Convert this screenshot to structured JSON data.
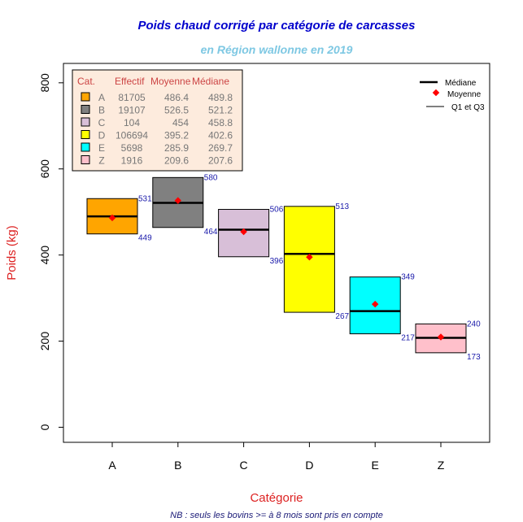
{
  "chart_data": {
    "type": "box",
    "title": "Poids chaud corrigé par catégorie de carcasses",
    "subtitle": "en Région wallonne en 2019",
    "xlabel": "Catégorie",
    "ylabel": "Poids (kg)",
    "note": "NB : seuls les bovins >= à 8 mois sont pris en compte",
    "ylim": [
      -35,
      845
    ],
    "yticks": [
      0,
      200,
      400,
      600,
      800
    ],
    "categories": [
      "A",
      "B",
      "C",
      "D",
      "E",
      "Z"
    ],
    "colors": [
      "#FFA500",
      "#808080",
      "#D8BFD8",
      "#FFFF00",
      "#00FFFF",
      "#FFC0CB"
    ],
    "q1": [
      449,
      464,
      396,
      267,
      217,
      173
    ],
    "q3": [
      531,
      580,
      506,
      513,
      349,
      240
    ],
    "q1_labels": [
      "449",
      "464",
      "396",
      "267",
      "217",
      "173"
    ],
    "q3_labels": [
      "531",
      "580",
      "506",
      "513",
      "349",
      "240"
    ],
    "mean": [
      486.4,
      526.5,
      454,
      395.2,
      285.9,
      209.6
    ],
    "median": [
      489.8,
      521.2,
      458.8,
      402.6,
      269.7,
      207.6
    ],
    "table_legend": {
      "header": [
        "Cat.",
        "Effectif",
        "Moyenne",
        "Médiane"
      ],
      "rows": [
        [
          "A",
          "81705",
          "486.4",
          "489.8"
        ],
        [
          "B",
          "19107",
          "526.5",
          "521.2"
        ],
        [
          "C",
          "104",
          "454",
          "458.8"
        ],
        [
          "D",
          "106694",
          "395.2",
          "402.6"
        ],
        [
          "E",
          "5698",
          "285.9",
          "269.7"
        ],
        [
          "Z",
          "1916",
          "209.6",
          "207.6"
        ]
      ]
    },
    "symbol_legend": {
      "median": "Médiane",
      "mean": "Moyenne",
      "quartiles": "Q1 et Q3"
    },
    "legend_position": "top-left (table), top-right (symbols)",
    "grid": false,
    "median_color": "#000000",
    "mean_color": "#FF0000"
  }
}
